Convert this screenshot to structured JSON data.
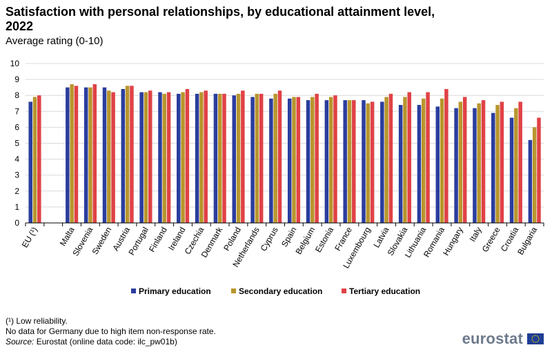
{
  "header": {
    "title": "Satisfaction with personal relationships, by educational attainment level, 2022",
    "subtitle": "Average rating (0-10)"
  },
  "footnotes": {
    "note1": "(¹) Low reliability.",
    "note2": "No data for Germany due to high item non-response rate.",
    "source_label": "Source:",
    "source_text": " Eurostat (online data code: ilc_pw01b)"
  },
  "logo": {
    "text": "eurostat",
    "flag_icon": "eu-flag-icon"
  },
  "colors": {
    "primary": "#2b3d9e",
    "secondary": "#b8962e",
    "tertiary": "#e04246",
    "grid": "#d9d9d9",
    "axis": "#000000"
  },
  "chart_data": {
    "type": "bar",
    "title": "Satisfaction with personal relationships, by educational attainment level, 2022",
    "subtitle": "Average rating (0-10)",
    "xlabel": "",
    "ylabel": "",
    "ylim": [
      0,
      10
    ],
    "yticks": [
      "0",
      "1",
      "2",
      "3",
      "4",
      "5",
      "6",
      "7",
      "8",
      "9",
      "10"
    ],
    "grid": true,
    "legend_position": "bottom",
    "categories": [
      "EU (¹)",
      "",
      "Malta",
      "Slovenia",
      "Sweden",
      "Austria",
      "Portugal",
      "Finland",
      "Ireland",
      "Czechia",
      "Denmark",
      "Poland",
      "Netherlands",
      "Cyprus",
      "Spain",
      "Belgium",
      "Estonia",
      "France",
      "Luxembourg",
      "Latvia",
      "Slovakia",
      "Lithuania",
      "Romania",
      "Hungary",
      "Italy",
      "Greece",
      "Croatia",
      "Bulgaria"
    ],
    "series": [
      {
        "name": "Primary education",
        "color": "#2b3d9e",
        "values": [
          7.6,
          null,
          8.5,
          8.5,
          8.5,
          8.4,
          8.2,
          8.2,
          8.1,
          8.1,
          8.1,
          8.0,
          7.9,
          7.8,
          7.8,
          7.7,
          7.7,
          7.7,
          7.7,
          7.6,
          7.4,
          7.4,
          7.3,
          7.2,
          7.2,
          6.9,
          6.6,
          5.2
        ]
      },
      {
        "name": "Secondary education",
        "color": "#b8962e",
        "values": [
          7.9,
          null,
          8.7,
          8.5,
          8.3,
          8.6,
          8.2,
          8.1,
          8.2,
          8.2,
          8.1,
          8.1,
          8.1,
          8.1,
          7.9,
          7.9,
          7.9,
          7.7,
          7.5,
          7.9,
          7.9,
          7.8,
          7.8,
          7.6,
          7.5,
          7.4,
          7.2,
          6.0
        ]
      },
      {
        "name": "Tertiary education",
        "color": "#e04246",
        "values": [
          8.0,
          null,
          8.6,
          8.7,
          8.2,
          8.6,
          8.3,
          8.2,
          8.4,
          8.3,
          8.1,
          8.3,
          8.1,
          8.3,
          7.9,
          8.1,
          8.0,
          7.7,
          7.6,
          8.1,
          8.2,
          8.2,
          8.4,
          7.9,
          7.7,
          7.6,
          7.6,
          6.6
        ]
      }
    ]
  }
}
